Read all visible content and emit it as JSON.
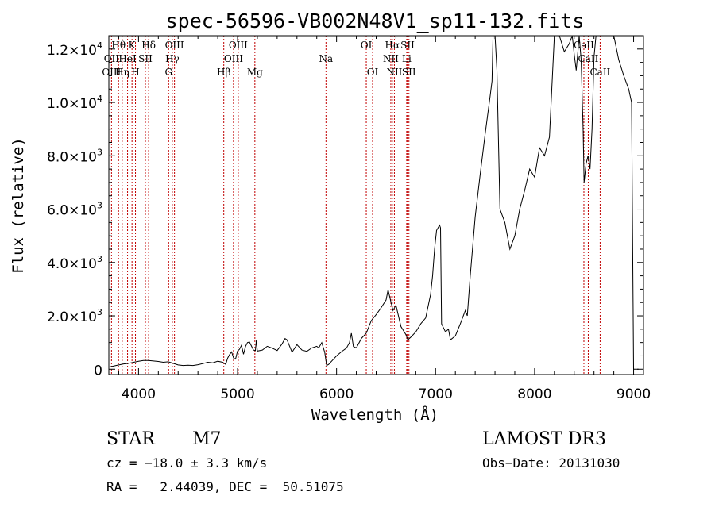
{
  "chart_data": {
    "type": "line",
    "title": "spec-56596-VB002N48V1_sp11-132.fits",
    "xlabel": "Wavelength (Å)",
    "ylabel": "Flux (relative)",
    "xlim": [
      3700,
      9100
    ],
    "ylim": [
      -200,
      12500
    ],
    "x_ticks": [
      {
        "value": 4000,
        "label": "4000"
      },
      {
        "value": 5000,
        "label": "5000"
      },
      {
        "value": 6000,
        "label": "6000"
      },
      {
        "value": 7000,
        "label": "7000"
      },
      {
        "value": 8000,
        "label": "8000"
      },
      {
        "value": 9000,
        "label": "9000"
      }
    ],
    "y_ticks": [
      {
        "value": 0,
        "mant": "0",
        "exp": ""
      },
      {
        "value": 2000,
        "mant": "2.0×10",
        "exp": "3"
      },
      {
        "value": 4000,
        "mant": "4.0×10",
        "exp": "3"
      },
      {
        "value": 6000,
        "mant": "6.0×10",
        "exp": "3"
      },
      {
        "value": 8000,
        "mant": "8.0×10",
        "exp": "3"
      },
      {
        "value": 10000,
        "mant": "1.0×10",
        "exp": "4"
      },
      {
        "value": 12000,
        "mant": "1.2×10",
        "exp": "4"
      }
    ],
    "spectral_lines": [
      {
        "label": "Hθ",
        "wavelength": 3798,
        "row": 1
      },
      {
        "label": "OII",
        "wavelength": 3727,
        "row": 2
      },
      {
        "label": "OIII",
        "wavelength": 3727,
        "row": 3
      },
      {
        "label": "Hη",
        "wavelength": 3835,
        "row": 3
      },
      {
        "label": "HeI",
        "wavelength": 3889,
        "row": 2
      },
      {
        "label": "K",
        "wavelength": 3934,
        "row": 1
      },
      {
        "label": "H",
        "wavelength": 3969,
        "row": 3
      },
      {
        "label": "SII",
        "wavelength": 4069,
        "row": 2
      },
      {
        "label": "Hδ",
        "wavelength": 4102,
        "row": 1
      },
      {
        "label": "OIII",
        "wavelength": 4363,
        "row": 1
      },
      {
        "label": "Hγ",
        "wavelength": 4341,
        "row": 2
      },
      {
        "label": "G",
        "wavelength": 4304,
        "row": 3
      },
      {
        "label": "Hβ",
        "wavelength": 4861,
        "row": 3
      },
      {
        "label": "OIII",
        "wavelength": 5007,
        "row": 1
      },
      {
        "label": "OIII",
        "wavelength": 4959,
        "row": 2
      },
      {
        "label": "Mg",
        "wavelength": 5175,
        "row": 3
      },
      {
        "label": "Na",
        "wavelength": 5893,
        "row": 2
      },
      {
        "label": "OI",
        "wavelength": 6300,
        "row": 1
      },
      {
        "label": "OI",
        "wavelength": 6364,
        "row": 3
      },
      {
        "label": "Hα",
        "wavelength": 6563,
        "row": 1
      },
      {
        "label": "NII",
        "wavelength": 6548,
        "row": 2
      },
      {
        "label": "NII",
        "wavelength": 6584,
        "row": 3
      },
      {
        "label": "SII",
        "wavelength": 6717,
        "row": 1
      },
      {
        "label": "Li",
        "wavelength": 6708,
        "row": 2
      },
      {
        "label": "SII",
        "wavelength": 6731,
        "row": 3
      },
      {
        "label": "CaII",
        "wavelength": 8498,
        "row": 1
      },
      {
        "label": "CaII",
        "wavelength": 8542,
        "row": 2
      },
      {
        "label": "CaII",
        "wavelength": 8662,
        "row": 3
      }
    ],
    "series": [
      {
        "name": "spectrum",
        "x": [
          3700,
          3750,
          3800,
          3850,
          3900,
          3950,
          4000,
          4050,
          4100,
          4150,
          4200,
          4250,
          4300,
          4350,
          4400,
          4450,
          4500,
          4550,
          4600,
          4650,
          4700,
          4750,
          4800,
          4850,
          4880,
          4900,
          4920,
          4940,
          4960,
          4980,
          5000,
          5020,
          5040,
          5060,
          5080,
          5100,
          5120,
          5160,
          5180,
          5190,
          5200,
          5250,
          5300,
          5350,
          5400,
          5450,
          5480,
          5500,
          5550,
          5600,
          5650,
          5700,
          5750,
          5800,
          5820,
          5850,
          5880,
          5900,
          5920,
          5950,
          6000,
          6050,
          6100,
          6130,
          6150,
          6170,
          6200,
          6250,
          6300,
          6350,
          6400,
          6450,
          6500,
          6520,
          6550,
          6570,
          6600,
          6650,
          6700,
          6720,
          6750,
          6800,
          6850,
          6900,
          6950,
          6970,
          6990,
          7010,
          7040,
          7050,
          7060,
          7100,
          7130,
          7150,
          7200,
          7250,
          7300,
          7320,
          7350,
          7400,
          7450,
          7500,
          7550,
          7570,
          7580,
          7600,
          7620,
          7650,
          7700,
          7750,
          7800,
          7850,
          7900,
          7950,
          8000,
          8050,
          8100,
          8150,
          8200,
          8250,
          8300,
          8350,
          8380,
          8400,
          8420,
          8440,
          8450,
          8470,
          8490,
          8500,
          8520,
          8540,
          8560,
          8580,
          8600,
          8620,
          8650,
          8700,
          8750,
          8800,
          8850,
          8900,
          8950,
          8980,
          9000,
          9010,
          9020,
          9050
        ],
        "y": [
          80,
          120,
          160,
          200,
          220,
          260,
          300,
          330,
          330,
          310,
          290,
          260,
          280,
          220,
          160,
          140,
          150,
          140,
          170,
          210,
          260,
          240,
          300,
          260,
          180,
          420,
          550,
          650,
          420,
          380,
          680,
          750,
          900,
          560,
          850,
          1000,
          1020,
          720,
          700,
          1100,
          680,
          720,
          860,
          790,
          700,
          950,
          1150,
          1100,
          640,
          920,
          720,
          670,
          800,
          860,
          800,
          1000,
          640,
          140,
          180,
          300,
          500,
          660,
          790,
          1000,
          1350,
          850,
          800,
          1150,
          1350,
          1820,
          2050,
          2300,
          2600,
          2980,
          2500,
          2200,
          2400,
          1600,
          1300,
          1100,
          1200,
          1400,
          1700,
          1920,
          2800,
          3500,
          4500,
          5200,
          5400,
          5300,
          1700,
          1400,
          1500,
          1100,
          1250,
          1700,
          2200,
          2000,
          3500,
          5700,
          7300,
          8800,
          10200,
          10800,
          12500,
          12500,
          11200,
          6000,
          5500,
          4500,
          5000,
          6000,
          6700,
          7500,
          7200,
          8300,
          8000,
          8700,
          12500,
          12500,
          11900,
          12200,
          12500,
          11800,
          11200,
          12000,
          12500,
          11600,
          9000,
          7000,
          7700,
          8000,
          7500,
          9000,
          11700,
          12500,
          12500,
          12500,
          12500,
          12500,
          11600,
          11000,
          10500,
          10000,
          0,
          0,
          0,
          0
        ]
      }
    ]
  },
  "info": {
    "object_type": "STAR",
    "subclass": "M7",
    "survey": "LAMOST DR3",
    "cz": "cz = −18.0 ± 3.3 km/s",
    "obs_date": "Obs−Date: 20131030",
    "coords": "RA =   2.44039, DEC =  50.51075"
  }
}
